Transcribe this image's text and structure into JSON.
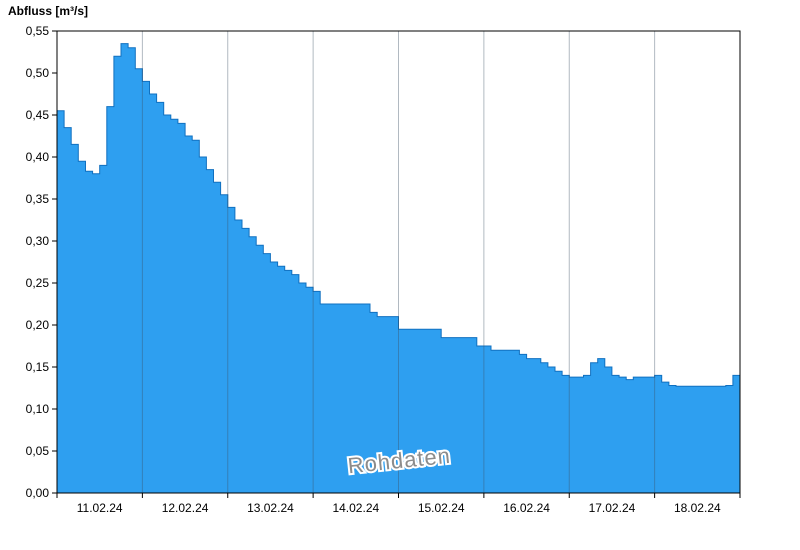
{
  "chart_data": {
    "type": "area",
    "title": "",
    "ylabel": "Abfluss [m³/s]",
    "xlabel": "",
    "watermark": "Rohdaten",
    "x_tick_labels": [
      "11.02.24",
      "12.02.24",
      "13.02.24",
      "14.02.24",
      "15.02.24",
      "16.02.24",
      "17.02.24",
      "18.02.24"
    ],
    "x_days": 8,
    "points_per_day": 12,
    "y_tick_values": [
      0.0,
      0.05,
      0.1,
      0.15,
      0.2,
      0.25,
      0.3,
      0.35,
      0.4,
      0.45,
      0.5,
      0.55
    ],
    "y_tick_labels": [
      "0,00",
      "0,05",
      "0,10",
      "0,15",
      "0,20",
      "0,25",
      "0,30",
      "0,35",
      "0,40",
      "0,45",
      "0,50",
      "0,55"
    ],
    "ylim": [
      0.0,
      0.55
    ],
    "grid": "vertical-day-lines",
    "legend_position": "none",
    "colors": {
      "fill": "#2E9FF0",
      "stroke": "#1070C0",
      "grid": "rgba(60,80,100,0.40)",
      "axis": "#000000",
      "watermark": "#8C8C8C"
    },
    "series": [
      {
        "name": "Abfluss Rohdaten",
        "step": "post",
        "interval_hours": 2,
        "values": [
          0.455,
          0.435,
          0.415,
          0.395,
          0.383,
          0.38,
          0.39,
          0.46,
          0.52,
          0.535,
          0.53,
          0.505,
          0.49,
          0.475,
          0.465,
          0.45,
          0.445,
          0.44,
          0.425,
          0.42,
          0.4,
          0.385,
          0.37,
          0.355,
          0.34,
          0.325,
          0.315,
          0.305,
          0.295,
          0.285,
          0.275,
          0.27,
          0.265,
          0.26,
          0.25,
          0.245,
          0.24,
          0.225,
          0.225,
          0.225,
          0.225,
          0.225,
          0.225,
          0.225,
          0.215,
          0.21,
          0.21,
          0.21,
          0.195,
          0.195,
          0.195,
          0.195,
          0.195,
          0.195,
          0.185,
          0.185,
          0.185,
          0.185,
          0.185,
          0.175,
          0.175,
          0.17,
          0.17,
          0.17,
          0.17,
          0.165,
          0.16,
          0.16,
          0.155,
          0.15,
          0.145,
          0.14,
          0.138,
          0.138,
          0.14,
          0.155,
          0.16,
          0.15,
          0.14,
          0.138,
          0.135,
          0.138,
          0.138,
          0.138,
          0.14,
          0.132,
          0.128,
          0.127,
          0.127,
          0.127,
          0.127,
          0.127,
          0.127,
          0.127,
          0.128,
          0.14
        ]
      }
    ]
  }
}
